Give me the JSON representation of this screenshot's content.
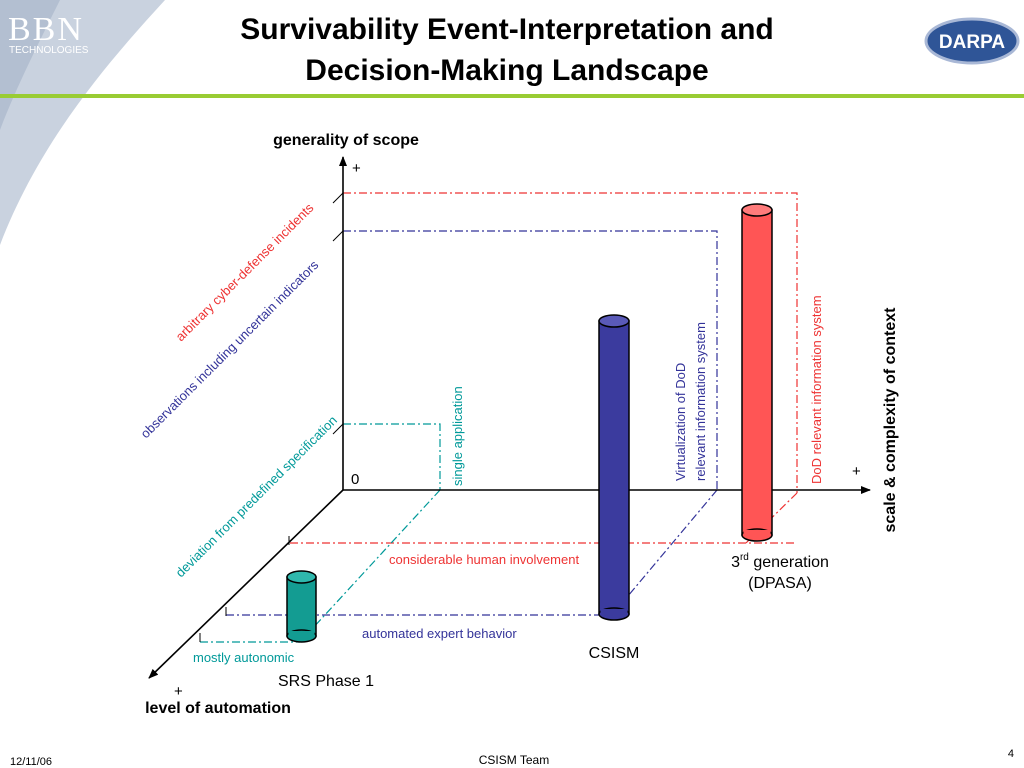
{
  "header": {
    "title_line1": "Survivability Event-Interpretation and",
    "title_line2": "Decision-Making Landscape",
    "logo_left_main": "BBN",
    "logo_left_sub": "TECHNOLOGIES",
    "logo_right": "DARPA"
  },
  "axes": {
    "vertical_label": "generality of scope",
    "vertical_plus": "+",
    "horizontal_label": "scale & complexity of context",
    "horizontal_plus": "+",
    "depth_label": "level of automation",
    "depth_plus": "+",
    "origin": "0"
  },
  "scope_levels": {
    "arbitrary": "arbitrary cyber-defense incidents",
    "observations": "observations including uncertain indicators",
    "deviation": "deviation from predefined specification"
  },
  "context_levels": {
    "single": "single application",
    "virtualization_line1": "Virtualization of DoD",
    "virtualization_line2": "relevant information system",
    "dod": "DoD relevant information system"
  },
  "automation_levels": {
    "human": "considerable human involvement",
    "expert": "automated expert behavior",
    "autonomic": "mostly autonomic"
  },
  "systems": {
    "srs": "SRS Phase 1",
    "csism": "CSISM",
    "third_gen_num": "3",
    "third_gen_sup": "rd",
    "third_gen_word": " generation",
    "third_gen_line2": "(DPASA)"
  },
  "colors": {
    "red": "#ee3333",
    "navy": "#333399",
    "teal": "#009999",
    "green_rule": "#99cc33",
    "cyl_red": "#ff5555",
    "cyl_blue": "#3b3b9e",
    "cyl_teal": "#139c92"
  },
  "footer": {
    "date": "12/11/06",
    "team": "CSISM Team",
    "page": "4"
  }
}
